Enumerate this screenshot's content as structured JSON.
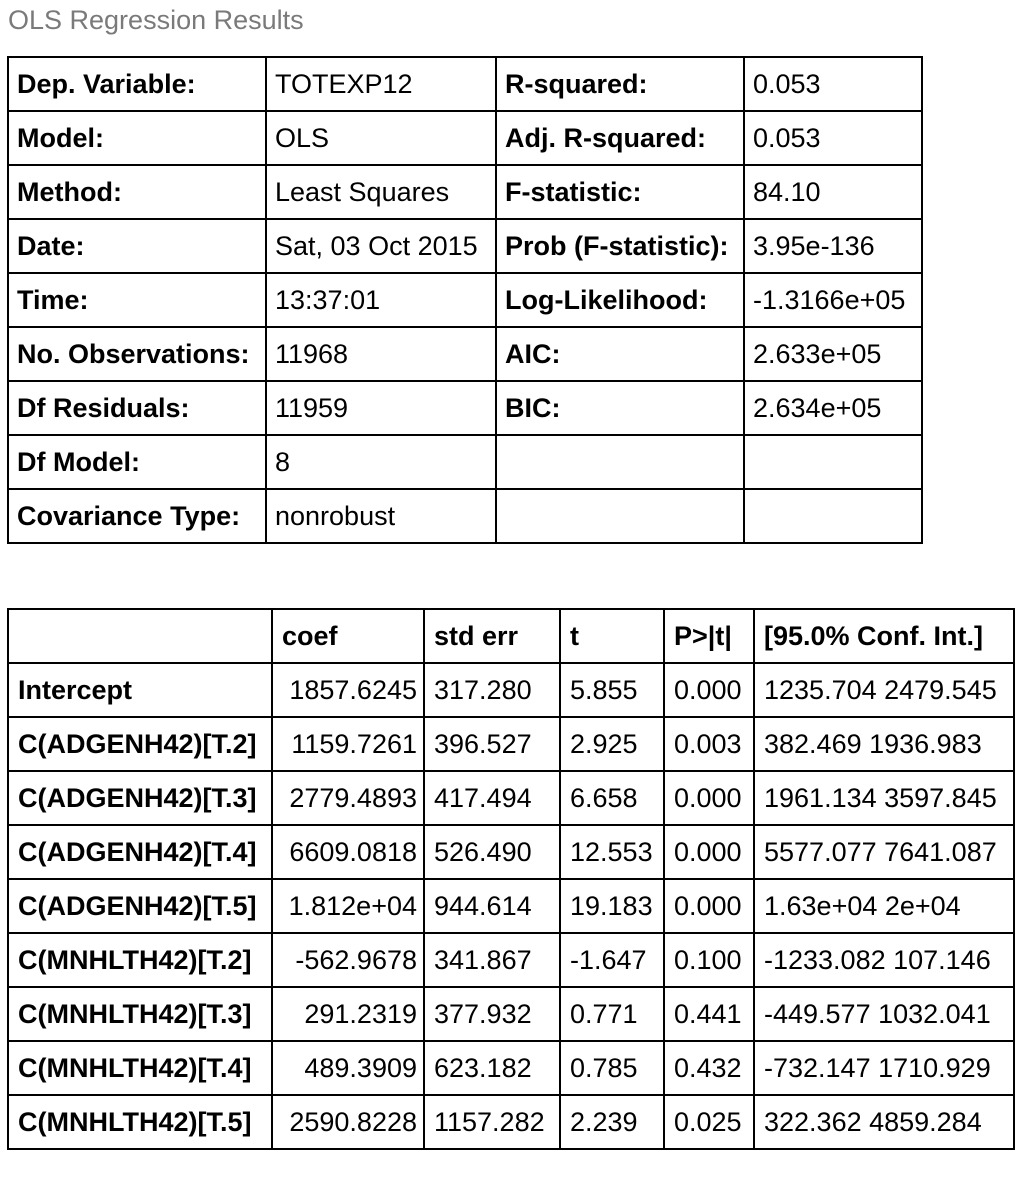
{
  "caption": "OLS Regression Results",
  "summary": [
    {
      "l1": "Dep. Variable:",
      "v1": "TOTEXP12",
      "l2": "R-squared:",
      "v2": "0.053"
    },
    {
      "l1": "Model:",
      "v1": "OLS",
      "l2": "Adj. R-squared:",
      "v2": "0.053"
    },
    {
      "l1": "Method:",
      "v1": "Least Squares",
      "l2": "F-statistic:",
      "v2": "84.10"
    },
    {
      "l1": "Date:",
      "v1": "Sat, 03 Oct 2015",
      "l2": "Prob (F-statistic):",
      "v2": "3.95e-136"
    },
    {
      "l1": "Time:",
      "v1": "13:37:01",
      "l2": "Log-Likelihood:",
      "v2": "-1.3166e+05"
    },
    {
      "l1": "No. Observations:",
      "v1": "11968",
      "l2": "AIC:",
      "v2": "2.633e+05"
    },
    {
      "l1": "Df Residuals:",
      "v1": "11959",
      "l2": "BIC:",
      "v2": "2.634e+05"
    },
    {
      "l1": "Df Model:",
      "v1": "8",
      "l2": "",
      "v2": ""
    },
    {
      "l1": "Covariance Type:",
      "v1": "nonrobust",
      "l2": "",
      "v2": ""
    }
  ],
  "coef_headers": [
    "",
    "coef",
    "std err",
    "t",
    "P>|t|",
    "[95.0% Conf. Int.]"
  ],
  "coef_rows": [
    {
      "name": "Intercept",
      "coef": "1857.6245",
      "se": "317.280",
      "t": "5.855",
      "p": "0.000",
      "ci": "1235.704 2479.545"
    },
    {
      "name": "C(ADGENH42)[T.2]",
      "coef": "1159.7261",
      "se": "396.527",
      "t": "2.925",
      "p": "0.003",
      "ci": "382.469 1936.983"
    },
    {
      "name": "C(ADGENH42)[T.3]",
      "coef": "2779.4893",
      "se": "417.494",
      "t": "6.658",
      "p": "0.000",
      "ci": "1961.134 3597.845"
    },
    {
      "name": "C(ADGENH42)[T.4]",
      "coef": "6609.0818",
      "se": "526.490",
      "t": "12.553",
      "p": "0.000",
      "ci": "5577.077 7641.087"
    },
    {
      "name": "C(ADGENH42)[T.5]",
      "coef": "1.812e+04",
      "se": "944.614",
      "t": "19.183",
      "p": "0.000",
      "ci": "1.63e+04 2e+04"
    },
    {
      "name": "C(MNHLTH42)[T.2]",
      "coef": "-562.9678",
      "se": "341.867",
      "t": "-1.647",
      "p": "0.100",
      "ci": "-1233.082 107.146"
    },
    {
      "name": "C(MNHLTH42)[T.3]",
      "coef": "291.2319",
      "se": "377.932",
      "t": "0.771",
      "p": "0.441",
      "ci": "-449.577 1032.041"
    },
    {
      "name": "C(MNHLTH42)[T.4]",
      "coef": "489.3909",
      "se": "623.182",
      "t": "0.785",
      "p": "0.432",
      "ci": "-732.147 1710.929"
    },
    {
      "name": "C(MNHLTH42)[T.5]",
      "coef": "2590.8228",
      "se": "1157.282",
      "t": "2.239",
      "p": "0.025",
      "ci": "322.362 4859.284"
    }
  ]
}
